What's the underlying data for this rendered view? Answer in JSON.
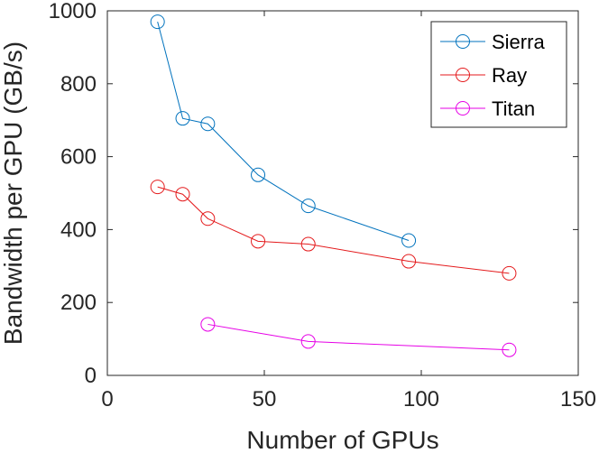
{
  "chart_data": {
    "type": "line",
    "title": "",
    "xlabel": "Number of GPUs",
    "ylabel": "Bandwidth per GPU (GB/s)",
    "xlim": [
      0,
      150
    ],
    "ylim": [
      0,
      1000
    ],
    "xticks": [
      0,
      50,
      100,
      150
    ],
    "yticks": [
      0,
      200,
      400,
      600,
      800,
      1000
    ],
    "grid": false,
    "legend_position": "top-right",
    "marker": "open-circle",
    "series": [
      {
        "name": "Sierra",
        "color": "#0072BD",
        "x": [
          16,
          24,
          32,
          48,
          64,
          96
        ],
        "y": [
          970,
          705,
          690,
          550,
          465,
          370
        ]
      },
      {
        "name": "Ray",
        "color": "#E41A1C",
        "x": [
          16,
          24,
          32,
          48,
          64,
          96,
          128
        ],
        "y": [
          517,
          497,
          430,
          368,
          360,
          313,
          280
        ]
      },
      {
        "name": "Titan",
        "color": "#E600E6",
        "x": [
          32,
          64,
          128
        ],
        "y": [
          140,
          93,
          70
        ]
      }
    ]
  }
}
